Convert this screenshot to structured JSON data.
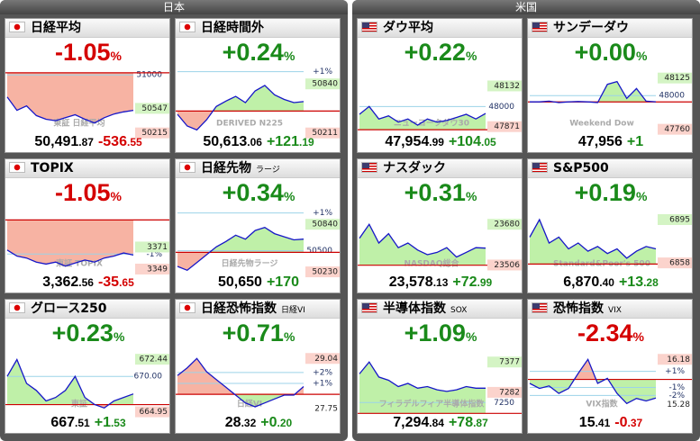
{
  "unit": "%",
  "panels": [
    {
      "title": "日本",
      "cards": [
        {
          "name": "日経平均",
          "flag": "jp",
          "change": "-1.05",
          "price": {
            "int": "50,491",
            "dec": ".87"
          },
          "diff": {
            "int": "-536",
            "dec": ".55"
          },
          "chart": {
            "ylim": [
              50150,
              51100
            ],
            "prev": 51028,
            "grid": [
              51000
            ],
            "high": 50547,
            "low": 50215,
            "watermark": "東証 日経平均",
            "points": [
              50700,
              50520,
              50580,
              50450,
              50400,
              50380,
              50420,
              50460,
              50400,
              50350,
              50420,
              50470,
              50500,
              50520
            ]
          }
        },
        {
          "name": "日経時間外",
          "flag": "jp",
          "change": "+0.24",
          "price": {
            "int": "50,613",
            "dec": ".06"
          },
          "diff": {
            "int": "+121",
            "dec": ".19"
          },
          "chart": {
            "ylim": [
              50150,
              51050
            ],
            "prev": 50492,
            "grid": [
              {
                "value": 50997,
                "label": "+1%"
              }
            ],
            "high": 50840,
            "low": 50211,
            "watermark": "DERIVED N225",
            "points": [
              50450,
              50300,
              50250,
              50380,
              50550,
              50620,
              50680,
              50600,
              50750,
              50820,
              50700,
              50640,
              50600,
              50613
            ]
          }
        },
        {
          "name": "TOPIX",
          "flag": "jp",
          "change": "-1.05",
          "price": {
            "int": "3,362",
            "dec": ".56"
          },
          "diff": {
            "int": "-35",
            "dec": ".65"
          },
          "chart": {
            "ylim": [
              3340,
              3410
            ],
            "prev": 3398,
            "grid": [
              {
                "value": 3364,
                "label": "-1%"
              }
            ],
            "high": 3371,
            "low": 3349,
            "watermark": "東証 TOPIX",
            "points": [
              3368,
              3362,
              3360,
              3356,
              3354,
              3356,
              3352,
              3355,
              3358,
              3356,
              3360,
              3362,
              3365,
              3363
            ]
          }
        },
        {
          "name": "日経先物",
          "sub": "ラージ",
          "flag": "jp",
          "change": "+0.34",
          "price": {
            "int": "50,650",
            "dec": ""
          },
          "diff": {
            "int": "+170",
            "dec": ""
          },
          "chart": {
            "ylim": [
              50150,
              51050
            ],
            "prev": 50480,
            "grid": [
              {
                "value": 50985,
                "label": "+1%"
              },
              50500
            ],
            "high": 50840,
            "low": 50230,
            "watermark": "日経先物ラージ",
            "points": [
              50300,
              50250,
              50350,
              50450,
              50550,
              50620,
              50700,
              50650,
              50760,
              50800,
              50720,
              50680,
              50640,
              50650
            ]
          }
        },
        {
          "name": "グロース250",
          "flag": "jp",
          "change": "+0.23",
          "price": {
            "int": "667",
            "dec": ".51"
          },
          "diff": {
            "int": "+1",
            "dec": ".53"
          },
          "chart": {
            "ylim": [
              664,
              674
            ],
            "prev": 665.98,
            "grid": [
              {
                "value": 670,
                "label": "670.00"
              }
            ],
            "high": 672.44,
            "low": 664.95,
            "watermark": "東証",
            "points": [
              670,
              672.4,
              669,
              668,
              666.5,
              667,
              668,
              670,
              667,
              666,
              665.5,
              666.5,
              667,
              667.5
            ]
          }
        },
        {
          "name": "日経恐怖指数",
          "sub": "日経VI",
          "flag": "jp",
          "change": "+0.71",
          "price": {
            "int": "28",
            "dec": ".32"
          },
          "diff": {
            "int": "+0",
            "dec": ".20"
          },
          "chart": {
            "ylim": [
              27.5,
              29.3
            ],
            "prev": 28.12,
            "inverse": true,
            "grid": [
              {
                "value": 28.68,
                "label": "+2%"
              },
              {
                "value": 28.4,
                "label": "+1%"
              }
            ],
            "high": 29.04,
            "low": 27.75,
            "watermark": "日経VI",
            "points": [
              28.6,
              28.8,
              29.04,
              28.7,
              28.5,
              28.3,
              28.1,
              27.9,
              27.8,
              27.9,
              28.0,
              28.1,
              28.1,
              28.32
            ]
          }
        }
      ]
    },
    {
      "title": "米国",
      "cards": [
        {
          "name": "ダウ平均",
          "flag": "us",
          "change": "+0.22",
          "price": {
            "int": "47,954",
            "dec": ".99"
          },
          "diff": {
            "int": "+104",
            "dec": ".05"
          },
          "chart": {
            "ylim": [
              47800,
              48250
            ],
            "prev": 47851,
            "grid": [
              {
                "value": 48330,
                "label": "+1%"
              },
              48000
            ],
            "high": 48132,
            "low": 47871,
            "watermark": "ニューヨークダウ30",
            "points": [
              47950,
              48000,
              47920,
              47940,
              47900,
              47920,
              47880,
              47920,
              47900,
              47910,
              47930,
              47950,
              47920,
              47955
            ]
          }
        },
        {
          "name": "サンデーダウ",
          "flag": "us",
          "change": "+0.00",
          "price": {
            "int": "47,956",
            "dec": ""
          },
          "diff": {
            "int": "+1",
            "dec": ""
          },
          "chart": {
            "ylim": [
              47700,
              48200
            ],
            "prev": 47955,
            "grid": [
              {
                "value": 48435,
                "label": "+1%"
              },
              48000
            ],
            "high": 48125,
            "low": 47760,
            "watermark": "Weekend Dow",
            "points": [
              47955,
              47955,
              47960,
              47950,
              47955,
              47958,
              47955,
              47950,
              48080,
              48100,
              47980,
              48050,
              47960,
              47956
            ]
          }
        },
        {
          "name": "ナスダック",
          "flag": "us",
          "change": "+0.31",
          "price": {
            "int": "23,578",
            "dec": ".13"
          },
          "diff": {
            "int": "+72",
            "dec": ".99"
          },
          "chart": {
            "ylim": [
              23450,
              23750
            ],
            "prev": 23505,
            "grid": [],
            "high": 23680,
            "low": 23506,
            "watermark": "NASDAQ総合",
            "points": [
              23620,
              23680,
              23600,
              23640,
              23580,
              23600,
              23570,
              23550,
              23560,
              23580,
              23540,
              23560,
              23580,
              23578
            ]
          }
        },
        {
          "name": "S&P500",
          "flag": "us",
          "change": "+0.19",
          "price": {
            "int": "6,870",
            "dec": ".40"
          },
          "diff": {
            "int": "+13",
            "dec": ".28"
          },
          "chart": {
            "ylim": [
              6845,
              6905
            ],
            "prev": 6857,
            "grid": [],
            "high": 6895,
            "low": 6858,
            "watermark": "Standard&Poor's 500",
            "points": [
              6880,
              6895,
              6875,
              6880,
              6870,
              6875,
              6868,
              6872,
              6866,
              6870,
              6862,
              6868,
              6872,
              6870
            ]
          }
        },
        {
          "name": "半導体指数",
          "sub": "SOX",
          "flag": "us",
          "change": "+1.09",
          "price": {
            "int": "7,294",
            "dec": ".84"
          },
          "diff": {
            "int": "+78",
            "dec": ".87"
          },
          "chart": {
            "ylim": [
              7200,
              7420
            ],
            "prev": 7216,
            "grid": [
              7250
            ],
            "high": 7377,
            "low": 7282,
            "watermark": "フィラデルフィア半導体指数",
            "points": [
              7340,
              7377,
              7330,
              7320,
              7300,
              7310,
              7295,
              7300,
              7290,
              7285,
              7290,
              7300,
              7295,
              7295
            ]
          }
        },
        {
          "name": "恐怖指数",
          "sub": "VIX",
          "flag": "us",
          "change": "-2.34",
          "price": {
            "int": "15",
            "dec": ".41"
          },
          "diff": {
            "int": "-0",
            "dec": ".37"
          },
          "chart": {
            "ylim": [
              15.0,
              16.4
            ],
            "prev": 15.78,
            "inverse": true,
            "grid": [
              {
                "value": 15.94,
                "label": "+1%"
              },
              {
                "value": 15.62,
                "label": "-1%"
              },
              {
                "value": 15.46,
                "label": "-2%"
              }
            ],
            "high": 16.18,
            "low": 15.28,
            "watermark": "VIX指数",
            "points": [
              15.7,
              15.6,
              15.65,
              15.5,
              15.6,
              15.9,
              16.18,
              15.7,
              15.8,
              15.5,
              15.3,
              15.4,
              15.35,
              15.41
            ]
          }
        }
      ]
    }
  ]
}
